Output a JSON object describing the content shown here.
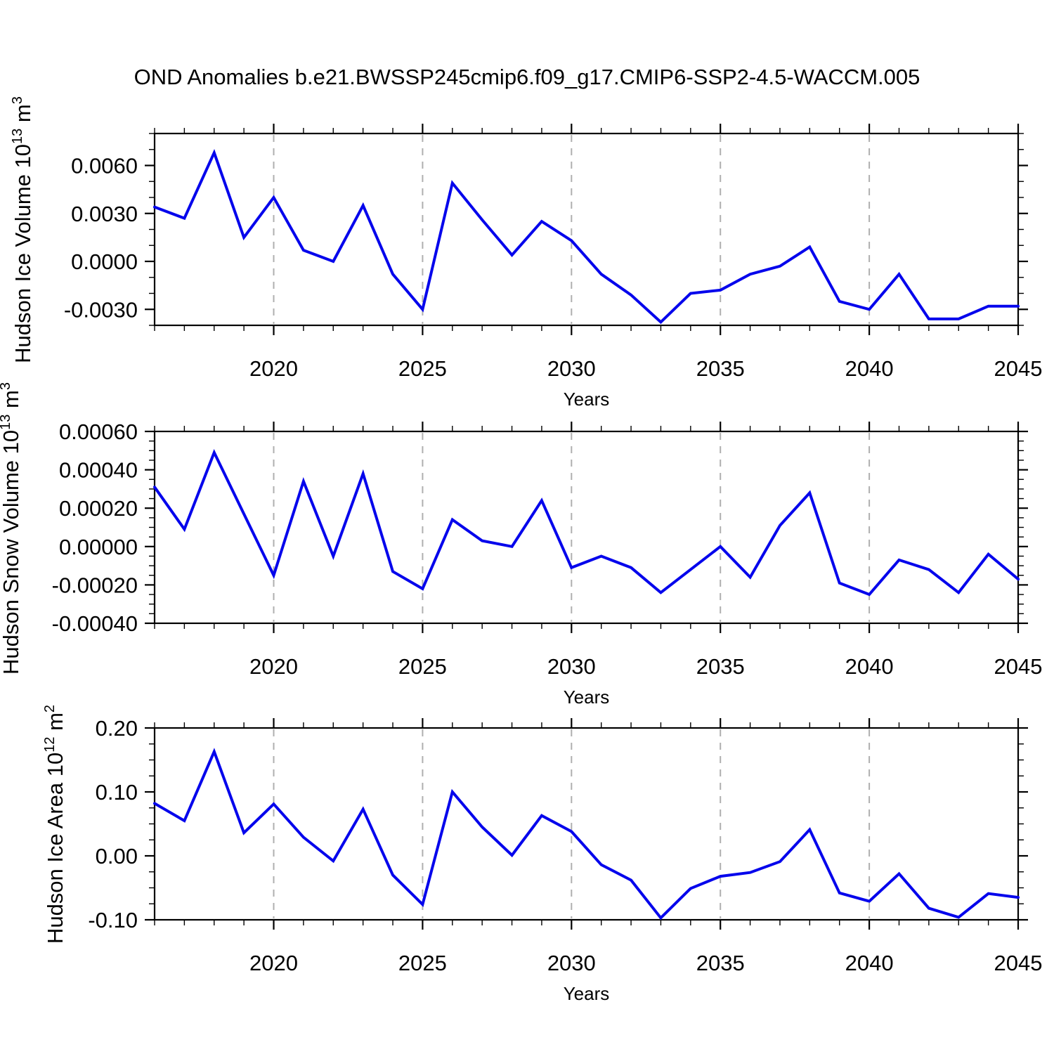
{
  "title": "OND Anomalies b.e21.BWSSP245cmip6.f09_g17.CMIP6-SSP2-4.5-WACCM.005",
  "background": "#ffffff",
  "accent_color": "#0505EC",
  "grid_color": "#AFAFAF",
  "axis_color": "#000000",
  "x_axis": {
    "label": "Years",
    "range": [
      2016,
      2045
    ],
    "major_tick_years": [
      2020,
      2025,
      2030,
      2035,
      2040,
      2045
    ],
    "major_tick_labels": [
      "2020",
      "2025",
      "2030",
      "2035",
      "2040",
      "2045"
    ],
    "minor_tick_step_years": 1,
    "gridline_years": [
      2020,
      2025,
      2030,
      2035,
      2040
    ],
    "gridline_style": "dashed-vertical"
  },
  "chart_data": [
    {
      "type": "line",
      "title": "",
      "xlabel": "Years",
      "ylabel": "Hudson Ice Volume 10^13 m^3",
      "ylabel_parts": {
        "main": "Hudson Ice Volume 10",
        "sup1": "13",
        "mid": " m",
        "sup2": "3"
      },
      "x": [
        2016,
        2017,
        2018,
        2019,
        2020,
        2021,
        2022,
        2023,
        2024,
        2025,
        2026,
        2027,
        2028,
        2029,
        2030,
        2031,
        2032,
        2033,
        2034,
        2035,
        2036,
        2037,
        2038,
        2039,
        2040,
        2041,
        2042,
        2043,
        2044,
        2045
      ],
      "values": [
        0.0034,
        0.0027,
        0.0068,
        0.0015,
        0.004,
        0.0007,
        0.0,
        0.0035,
        -0.0008,
        -0.003,
        0.0049,
        0.0026,
        0.0004,
        0.0025,
        0.0013,
        -0.0008,
        -0.0021,
        -0.0038,
        -0.002,
        -0.0018,
        -0.0008,
        -0.0003,
        0.0009,
        -0.0025,
        -0.003,
        -0.0008,
        -0.0036,
        -0.0036,
        -0.0028,
        -0.0028
      ],
      "ylim": [
        -0.004,
        0.008
      ],
      "ytick_values": [
        0.006,
        0.003,
        0.0,
        -0.003
      ],
      "ytick_labels": [
        "0.0060",
        "0.0030",
        "0.0000",
        "-0.0030"
      ],
      "y_minor_step": 0.001,
      "grid": "vertical-dashed-only",
      "legend": "none"
    },
    {
      "type": "line",
      "title": "",
      "xlabel": "Years",
      "ylabel": "Hudson Snow Volume 10^13 m^3",
      "ylabel_parts": {
        "main": "Hudson Snow Volume 10",
        "sup1": "13",
        "mid": " m",
        "sup2": "3"
      },
      "x": [
        2016,
        2017,
        2018,
        2019,
        2020,
        2021,
        2022,
        2023,
        2024,
        2025,
        2026,
        2027,
        2028,
        2029,
        2030,
        2031,
        2032,
        2033,
        2034,
        2035,
        2036,
        2037,
        2038,
        2039,
        2040,
        2041,
        2042,
        2043,
        2044,
        2045
      ],
      "values": [
        0.00031,
        9e-05,
        0.00049,
        0.00017,
        -0.00015,
        0.00034,
        -5e-05,
        0.00038,
        -0.00013,
        -0.00022,
        0.00014,
        3e-05,
        0.0,
        0.00024,
        -0.00011,
        -5e-05,
        -0.00011,
        -0.00024,
        -0.00012,
        0.0,
        -0.00016,
        0.00011,
        0.00028,
        -0.00019,
        -0.00025,
        -7e-05,
        -0.00012,
        -0.00024,
        -4e-05,
        -0.00017
      ],
      "ylim": [
        -0.0004,
        0.0006
      ],
      "ytick_values": [
        0.0006,
        0.0004,
        0.0002,
        0.0,
        -0.0002,
        -0.0004
      ],
      "ytick_labels": [
        "0.00060",
        "0.00040",
        "0.00020",
        "0.00000",
        "-0.00020",
        "-0.00040"
      ],
      "y_minor_step": 5e-05,
      "grid": "vertical-dashed-only",
      "legend": "none"
    },
    {
      "type": "line",
      "title": "",
      "xlabel": "Years",
      "ylabel": "Hudson Ice Area 10^12 m^2",
      "ylabel_parts": {
        "main": "Hudson Ice Area 10",
        "sup1": "12",
        "mid": " m",
        "sup2": "2"
      },
      "x": [
        2016,
        2017,
        2018,
        2019,
        2020,
        2021,
        2022,
        2023,
        2024,
        2025,
        2026,
        2027,
        2028,
        2029,
        2030,
        2031,
        2032,
        2033,
        2034,
        2035,
        2036,
        2037,
        2038,
        2039,
        2040,
        2041,
        2042,
        2043,
        2044,
        2045
      ],
      "values": [
        0.082,
        0.055,
        0.163,
        0.036,
        0.081,
        0.029,
        -0.008,
        0.073,
        -0.03,
        -0.076,
        0.1,
        0.045,
        0.001,
        0.063,
        0.038,
        -0.014,
        -0.038,
        -0.097,
        -0.051,
        -0.032,
        -0.026,
        -0.009,
        0.041,
        -0.058,
        -0.071,
        -0.028,
        -0.082,
        -0.096,
        -0.059,
        -0.065
      ],
      "ylim": [
        -0.1,
        0.2
      ],
      "ytick_values": [
        0.2,
        0.1,
        0.0,
        -0.1
      ],
      "ytick_labels": [
        "0.20",
        "0.10",
        "0.00",
        "-0.10"
      ],
      "y_minor_step": 0.025,
      "grid": "vertical-dashed-only",
      "legend": "none"
    }
  ]
}
